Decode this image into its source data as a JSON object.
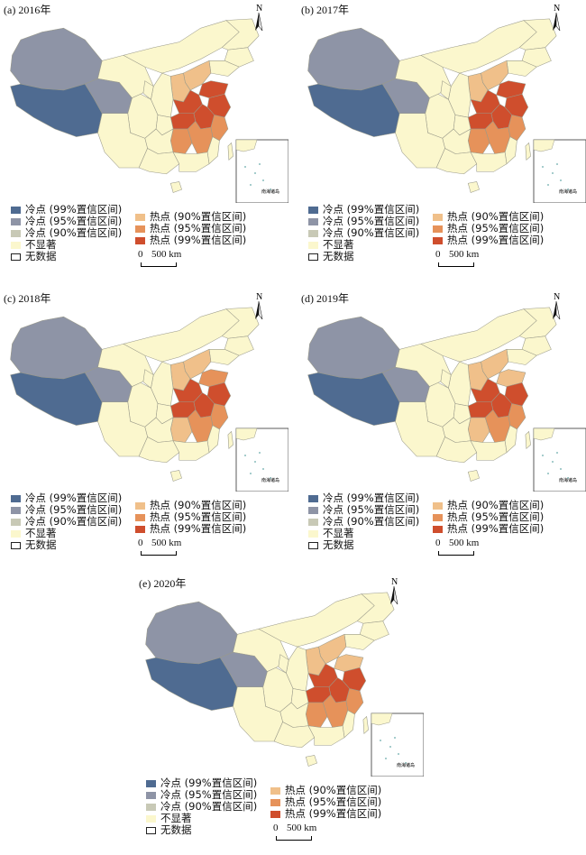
{
  "colors": {
    "cold99": "#4f6b91",
    "cold95": "#8e94a6",
    "cold90": "#c8c9b6",
    "ns": "#fbf7cd",
    "hot90": "#f0c08a",
    "hot95": "#e6925a",
    "hot99": "#cf4e2d"
  },
  "legend": {
    "cold99": "冷点 (99%置信区间)",
    "cold95": "冷点 (95%置信区间)",
    "cold90": "冷点 (90%置信区间)",
    "ns": "不显著",
    "nodata": "无数据",
    "hot90": "热点 (90%置信区间)",
    "hot95": "热点 (95%置信区间)",
    "hot99": "热点 (99%置信区间)"
  },
  "scale": {
    "zero": "0",
    "label": "500 km"
  },
  "north": "N",
  "inset_label": "南海诸岛",
  "panels": [
    {
      "title": "(a) 2016年",
      "regions": {
        "xizang": "cold99",
        "xinjiang": "cold95",
        "qinghai": "cold95",
        "shanxi": "hot90",
        "hebei": "hot90",
        "henan": "hot99",
        "shandong": "hot99",
        "anhui": "hot99",
        "jiangsu": "hot99",
        "hubei": "hot99",
        "hunan": "hot95",
        "jiangxi": "hot95",
        "zhejiang": "hot95"
      }
    },
    {
      "title": "(b) 2017年",
      "regions": {
        "xizang": "cold99",
        "xinjiang": "cold95",
        "qinghai": "cold95",
        "shanxi": "hot90",
        "hebei": "hot90",
        "henan": "hot99",
        "shandong": "hot99",
        "anhui": "hot99",
        "jiangsu": "hot99",
        "hubei": "hot99",
        "hunan": "hot95",
        "jiangxi": "hot95",
        "zhejiang": "hot95"
      }
    },
    {
      "title": "(c) 2018年",
      "regions": {
        "xizang": "cold99",
        "xinjiang": "cold95",
        "qinghai": "cold95",
        "shanxi": "hot90",
        "hebei": "hot90",
        "henan": "hot99",
        "shandong": "hot95",
        "anhui": "hot99",
        "jiangsu": "hot99",
        "hubei": "hot99",
        "hunan": "hot90",
        "jiangxi": "hot95",
        "zhejiang": "hot95"
      }
    },
    {
      "title": "(d) 2019年",
      "regions": {
        "xizang": "cold99",
        "xinjiang": "cold95",
        "qinghai": "cold95",
        "shanxi": "hot90",
        "hebei": "hot90",
        "henan": "hot99",
        "shandong": "hot90",
        "anhui": "hot99",
        "jiangsu": "hot99",
        "hubei": "hot99",
        "hunan": "hot90",
        "jiangxi": "hot95",
        "zhejiang": "hot95"
      }
    },
    {
      "title": "(e) 2020年",
      "regions": {
        "xizang": "cold99",
        "xinjiang": "cold95",
        "qinghai": "cold95",
        "shanxi": "hot90",
        "hebei": "hot90",
        "henan": "hot99",
        "shandong": "hot90",
        "anhui": "hot99",
        "jiangsu": "hot99",
        "hubei": "hot99",
        "hunan": "hot95",
        "jiangxi": "hot95",
        "zhejiang": "hot95"
      }
    }
  ]
}
